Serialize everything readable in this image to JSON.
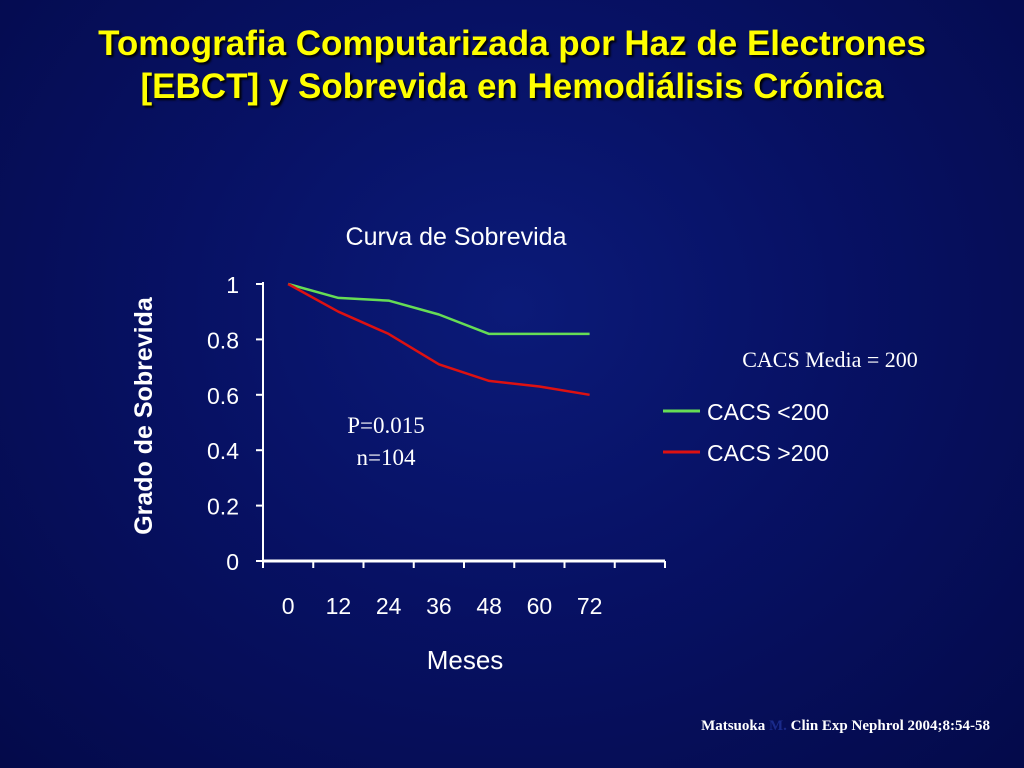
{
  "slide": {
    "title_line1": "Tomografia Computarizada por Haz de Electrones",
    "title_line2": "[EBCT] y Sobrevida en Hemodiálisis Crónica"
  },
  "annotations": {
    "p_value": "P=0.015",
    "n_value": "n=104",
    "cacs_media": "CACS Media = 200"
  },
  "citation": {
    "author": "Matsuoka",
    "initial": "M.",
    "reference": "Clin Exp Nephrol 2004;8:54-58"
  },
  "colors": {
    "title": "#ffff00",
    "background": "#071164",
    "axis": "#ffffff",
    "series_low": "#66dd55",
    "series_high": "#dd1111"
  },
  "chart_data": {
    "type": "line",
    "title": "Curva de Sobrevida",
    "xlabel": "Meses",
    "ylabel": "Grado de Sobrevida",
    "x_ticks": [
      0,
      12,
      24,
      36,
      48,
      60,
      72
    ],
    "xlim": [
      -6,
      90
    ],
    "ylim": [
      0,
      1
    ],
    "y_ticks": [
      "0",
      "0.2",
      "0.4",
      "0.6",
      "0.8",
      "1"
    ],
    "grid": false,
    "legend_position": "right",
    "series": [
      {
        "name": "CACS <200",
        "color": "#66dd55",
        "x": [
          0,
          12,
          24,
          36,
          48,
          60,
          72
        ],
        "y": [
          1.0,
          0.95,
          0.94,
          0.89,
          0.82,
          0.82,
          0.82
        ]
      },
      {
        "name": "CACS >200",
        "color": "#dd1111",
        "x": [
          0,
          12,
          24,
          36,
          48,
          60,
          72
        ],
        "y": [
          1.0,
          0.9,
          0.82,
          0.71,
          0.65,
          0.63,
          0.6
        ]
      }
    ]
  }
}
